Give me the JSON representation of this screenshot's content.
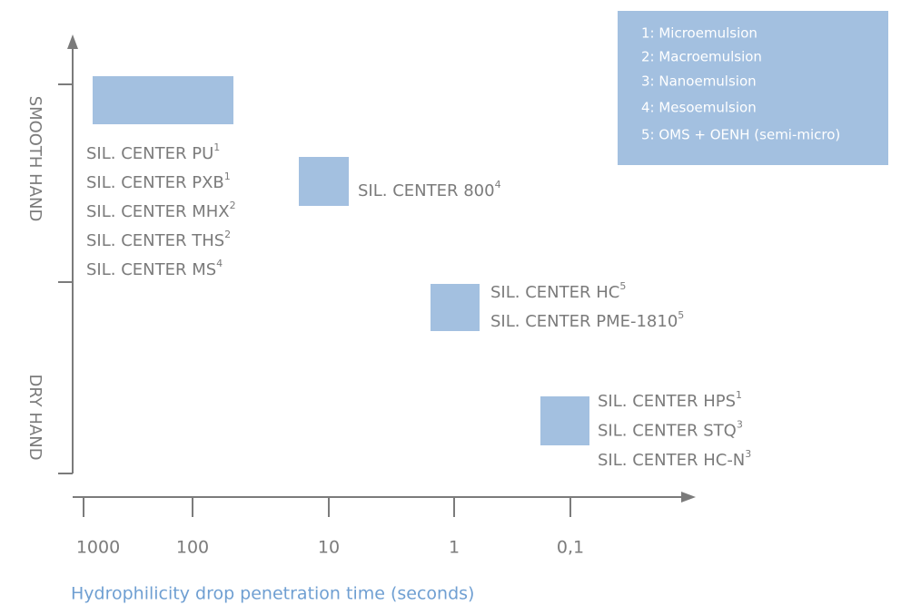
{
  "axes": {
    "y_labels": [
      "SMOOTH HAND",
      "DRY HAND"
    ],
    "x_ticks": [
      "1000",
      "100",
      "10",
      "1",
      "0,1"
    ],
    "x_title": "Hydrophilicity drop penetration time (seconds)"
  },
  "legend": [
    "1: Microemulsion",
    "2: Macroemulsion",
    "3: Nanoemulsion",
    "4: Mesoemulsion",
    "5: OMS + OENH (semi-micro)"
  ],
  "groups": [
    {
      "products": [
        {
          "name": "SIL. CENTER PU",
          "sup": "1"
        },
        {
          "name": "SIL. CENTER PXB",
          "sup": "1"
        },
        {
          "name": "SIL. CENTER MHX",
          "sup": "2"
        },
        {
          "name": "SIL. CENTER THS",
          "sup": "2"
        },
        {
          "name": "SIL. CENTER MS",
          "sup": "4"
        }
      ]
    },
    {
      "products": [
        {
          "name": "SIL. CENTER 800",
          "sup": "4"
        }
      ]
    },
    {
      "products": [
        {
          "name": "SIL. CENTER HC",
          "sup": "5"
        },
        {
          "name": "SIL. CENTER PME-1810",
          "sup": "5"
        }
      ]
    },
    {
      "products": [
        {
          "name": "SIL. CENTER HPS",
          "sup": "1"
        },
        {
          "name": "SIL. CENTER STQ",
          "sup": "3"
        },
        {
          "name": "SIL. CENTER HC-N",
          "sup": "3"
        }
      ]
    }
  ]
}
